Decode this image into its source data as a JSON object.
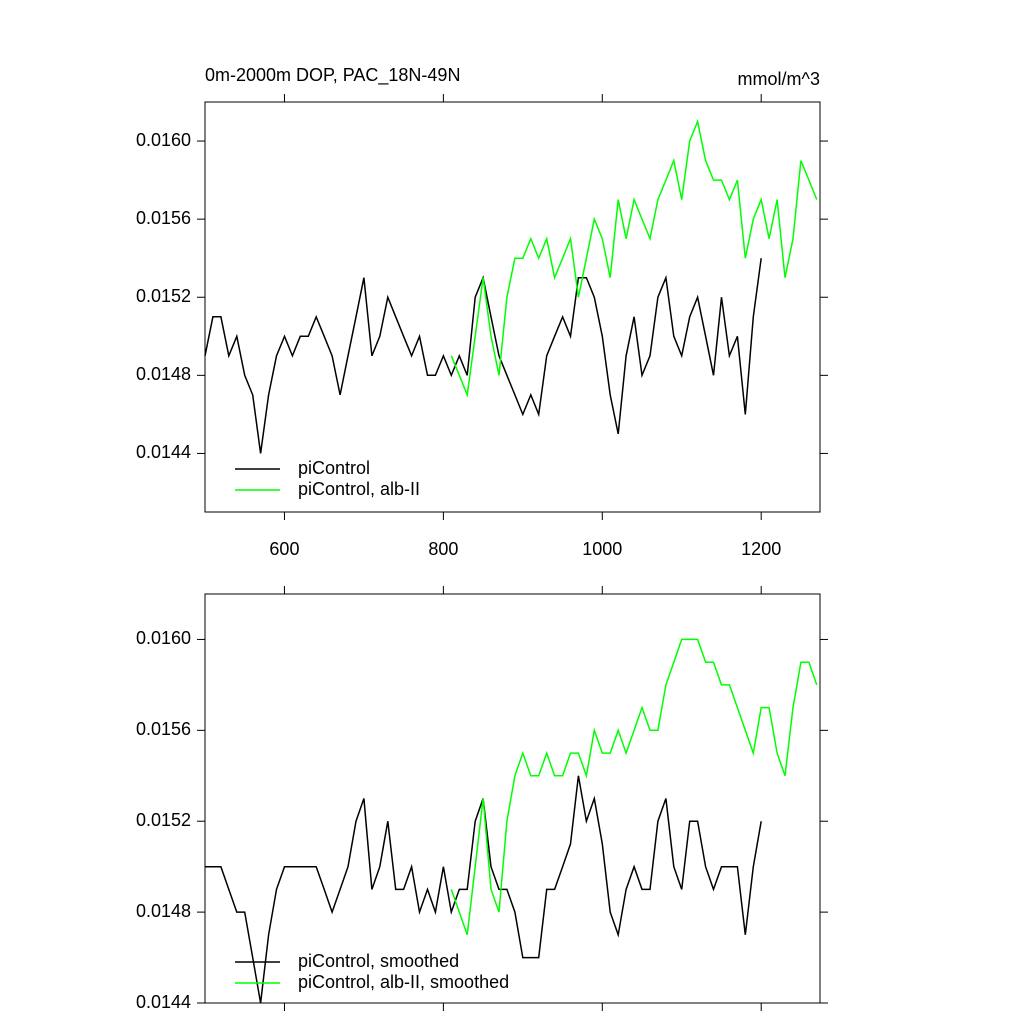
{
  "chart_data": [
    {
      "type": "line",
      "title": "0m-2000m DOP, PAC_18N-49N",
      "units": "mmol/m^3",
      "xlim": [
        500,
        1274
      ],
      "xticks": [
        600,
        800,
        1000,
        1200
      ],
      "xticklabels": true,
      "ylim": [
        0.0141,
        0.0162
      ],
      "yticks": [
        {
          "value": 0.0144,
          "label": "0.0144"
        },
        {
          "value": 0.0148,
          "label": "0.0148"
        },
        {
          "value": 0.0152,
          "label": "0.0152"
        },
        {
          "value": 0.0156,
          "label": "0.0156"
        },
        {
          "value": 0.016,
          "label": "0.0160"
        }
      ],
      "series": [
        {
          "name": "piControl",
          "color": "#000000",
          "x": [
            500,
            510,
            520,
            530,
            540,
            550,
            560,
            570,
            580,
            590,
            600,
            610,
            620,
            630,
            640,
            650,
            660,
            670,
            680,
            690,
            700,
            710,
            720,
            730,
            740,
            750,
            760,
            770,
            780,
            790,
            800,
            810,
            820,
            830,
            840,
            850,
            860,
            870,
            880,
            890,
            900,
            910,
            920,
            930,
            940,
            950,
            960,
            970,
            980,
            990,
            1000,
            1010,
            1020,
            1030,
            1040,
            1050,
            1060,
            1070,
            1080,
            1090,
            1100,
            1110,
            1120,
            1130,
            1140,
            1150,
            1160,
            1170,
            1180,
            1190,
            1200
          ],
          "values": [
            0.0149,
            0.0151,
            0.0151,
            0.0149,
            0.015,
            0.0148,
            0.0147,
            0.0144,
            0.0147,
            0.0149,
            0.015,
            0.0149,
            0.015,
            0.015,
            0.0151,
            0.015,
            0.0149,
            0.0147,
            0.0149,
            0.0151,
            0.0153,
            0.0149,
            0.015,
            0.0152,
            0.0151,
            0.015,
            0.0149,
            0.015,
            0.0148,
            0.0148,
            0.0149,
            0.0148,
            0.0149,
            0.0148,
            0.0152,
            0.0153,
            0.0151,
            0.0149,
            0.0148,
            0.0147,
            0.0146,
            0.0147,
            0.0146,
            0.0149,
            0.015,
            0.0151,
            0.015,
            0.0153,
            0.0153,
            0.0152,
            0.015,
            0.0147,
            0.0145,
            0.0149,
            0.0151,
            0.0148,
            0.0149,
            0.0152,
            0.0153,
            0.015,
            0.0149,
            0.0151,
            0.0152,
            0.015,
            0.0148,
            0.0152,
            0.0149,
            0.015,
            0.0146,
            0.0151,
            0.0154
          ]
        },
        {
          "name": "piControl, alb-II",
          "color": "#00ff00",
          "x": [
            810,
            820,
            830,
            840,
            850,
            860,
            870,
            880,
            890,
            900,
            910,
            920,
            930,
            940,
            950,
            960,
            970,
            980,
            990,
            1000,
            1010,
            1020,
            1030,
            1040,
            1050,
            1060,
            1070,
            1080,
            1090,
            1100,
            1110,
            1120,
            1130,
            1140,
            1150,
            1160,
            1170,
            1180,
            1190,
            1200,
            1210,
            1220,
            1230,
            1240,
            1250,
            1260,
            1270
          ],
          "values": [
            0.0149,
            0.0148,
            0.0147,
            0.015,
            0.0153,
            0.015,
            0.0148,
            0.0152,
            0.0154,
            0.0154,
            0.0155,
            0.0154,
            0.0155,
            0.0153,
            0.0154,
            0.0155,
            0.0152,
            0.0154,
            0.0156,
            0.0155,
            0.0153,
            0.0157,
            0.0155,
            0.0157,
            0.0156,
            0.0155,
            0.0157,
            0.0158,
            0.0159,
            0.0157,
            0.016,
            0.0161,
            0.0159,
            0.0158,
            0.0158,
            0.0157,
            0.0158,
            0.0154,
            0.0156,
            0.0157,
            0.0155,
            0.0157,
            0.0153,
            0.0155,
            0.0159,
            0.0158,
            0.0157
          ]
        }
      ]
    },
    {
      "type": "line",
      "xlim": [
        500,
        1274
      ],
      "xticks": [
        600,
        800,
        1000,
        1200
      ],
      "xticklabels": false,
      "ylim": [
        0.0144,
        0.0162
      ],
      "yticks": [
        {
          "value": 0.0144,
          "label": "0.0144"
        },
        {
          "value": 0.0148,
          "label": "0.0148"
        },
        {
          "value": 0.0152,
          "label": "0.0152"
        },
        {
          "value": 0.0156,
          "label": "0.0156"
        },
        {
          "value": 0.016,
          "label": "0.0160"
        }
      ],
      "series": [
        {
          "name": "piControl, smoothed",
          "color": "#000000",
          "x": [
            500,
            510,
            520,
            530,
            540,
            550,
            560,
            570,
            580,
            590,
            600,
            610,
            620,
            630,
            640,
            650,
            660,
            670,
            680,
            690,
            700,
            710,
            720,
            730,
            740,
            750,
            760,
            770,
            780,
            790,
            800,
            810,
            820,
            830,
            840,
            850,
            860,
            870,
            880,
            890,
            900,
            910,
            920,
            930,
            940,
            950,
            960,
            970,
            980,
            990,
            1000,
            1010,
            1020,
            1030,
            1040,
            1050,
            1060,
            1070,
            1080,
            1090,
            1100,
            1110,
            1120,
            1130,
            1140,
            1150,
            1160,
            1170,
            1180,
            1190,
            1200
          ],
          "values": [
            0.015,
            0.015,
            0.015,
            0.0149,
            0.0148,
            0.0148,
            0.0146,
            0.0144,
            0.0147,
            0.0149,
            0.015,
            0.015,
            0.015,
            0.015,
            0.015,
            0.0149,
            0.0148,
            0.0149,
            0.015,
            0.0152,
            0.0153,
            0.0149,
            0.015,
            0.0152,
            0.0149,
            0.0149,
            0.015,
            0.0148,
            0.0149,
            0.0148,
            0.015,
            0.0148,
            0.0149,
            0.0149,
            0.0152,
            0.0153,
            0.015,
            0.0149,
            0.0149,
            0.0148,
            0.0146,
            0.0146,
            0.0146,
            0.0149,
            0.0149,
            0.015,
            0.0151,
            0.0154,
            0.0152,
            0.0153,
            0.0151,
            0.0148,
            0.0147,
            0.0149,
            0.015,
            0.0149,
            0.0149,
            0.0152,
            0.0153,
            0.015,
            0.0149,
            0.0152,
            0.0152,
            0.015,
            0.0149,
            0.015,
            0.015,
            0.015,
            0.0147,
            0.015,
            0.0152
          ]
        },
        {
          "name": "piControl, alb-II, smoothed",
          "color": "#00ff00",
          "x": [
            810,
            820,
            830,
            840,
            850,
            860,
            870,
            880,
            890,
            900,
            910,
            920,
            930,
            940,
            950,
            960,
            970,
            980,
            990,
            1000,
            1010,
            1020,
            1030,
            1040,
            1050,
            1060,
            1070,
            1080,
            1090,
            1100,
            1110,
            1120,
            1130,
            1140,
            1150,
            1160,
            1170,
            1180,
            1190,
            1200,
            1210,
            1220,
            1230,
            1240,
            1250,
            1260,
            1270
          ],
          "values": [
            0.0149,
            0.0148,
            0.0147,
            0.015,
            0.0153,
            0.0149,
            0.0148,
            0.0152,
            0.0154,
            0.0155,
            0.0154,
            0.0154,
            0.0155,
            0.0154,
            0.0154,
            0.0155,
            0.0155,
            0.0154,
            0.0156,
            0.0155,
            0.0155,
            0.0156,
            0.0155,
            0.0156,
            0.0157,
            0.0156,
            0.0156,
            0.0158,
            0.0159,
            0.016,
            0.016,
            0.016,
            0.0159,
            0.0159,
            0.0158,
            0.0158,
            0.0157,
            0.0156,
            0.0155,
            0.0157,
            0.0157,
            0.0155,
            0.0154,
            0.0157,
            0.0159,
            0.0159,
            0.0158
          ]
        }
      ]
    }
  ]
}
